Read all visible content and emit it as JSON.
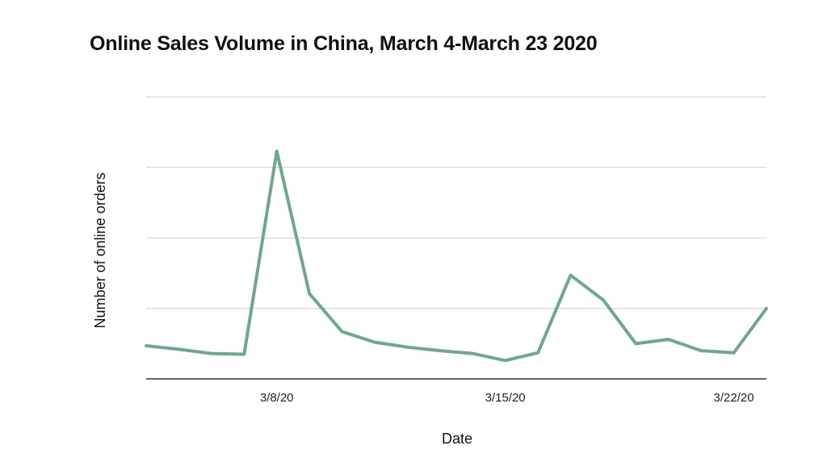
{
  "chart_data": {
    "type": "line",
    "title": "Online Sales Volume in China, March 4-March 23 2020",
    "xlabel": "Date",
    "ylabel": "Number of online orders",
    "x": [
      "3/4/20",
      "3/5/20",
      "3/6/20",
      "3/7/20",
      "3/8/20",
      "3/9/20",
      "3/10/20",
      "3/11/20",
      "3/12/20",
      "3/13/20",
      "3/14/20",
      "3/15/20",
      "3/16/20",
      "3/17/20",
      "3/18/20",
      "3/19/20",
      "3/20/20",
      "3/21/20",
      "3/22/20",
      "3/23/20"
    ],
    "x_tick_labels": [
      "3/8/20",
      "3/15/20",
      "3/22/20"
    ],
    "x_tick_indices": [
      4,
      11,
      18
    ],
    "series": [
      {
        "values": [
          0.47,
          0.42,
          0.36,
          0.35,
          3.23,
          1.21,
          0.67,
          0.52,
          0.45,
          0.4,
          0.36,
          0.26,
          0.37,
          1.47,
          1.12,
          0.5,
          0.56,
          0.4,
          0.37,
          1.0
        ]
      }
    ],
    "y_tick_labels_shown": false,
    "ylim": [
      0,
      4
    ],
    "y_gridlines": [
      1,
      2,
      3,
      4
    ],
    "grid": true,
    "legend": "none",
    "line_color": "#6aaa89",
    "grid_color": "#d9d9d9",
    "axis_color": "#333333"
  }
}
